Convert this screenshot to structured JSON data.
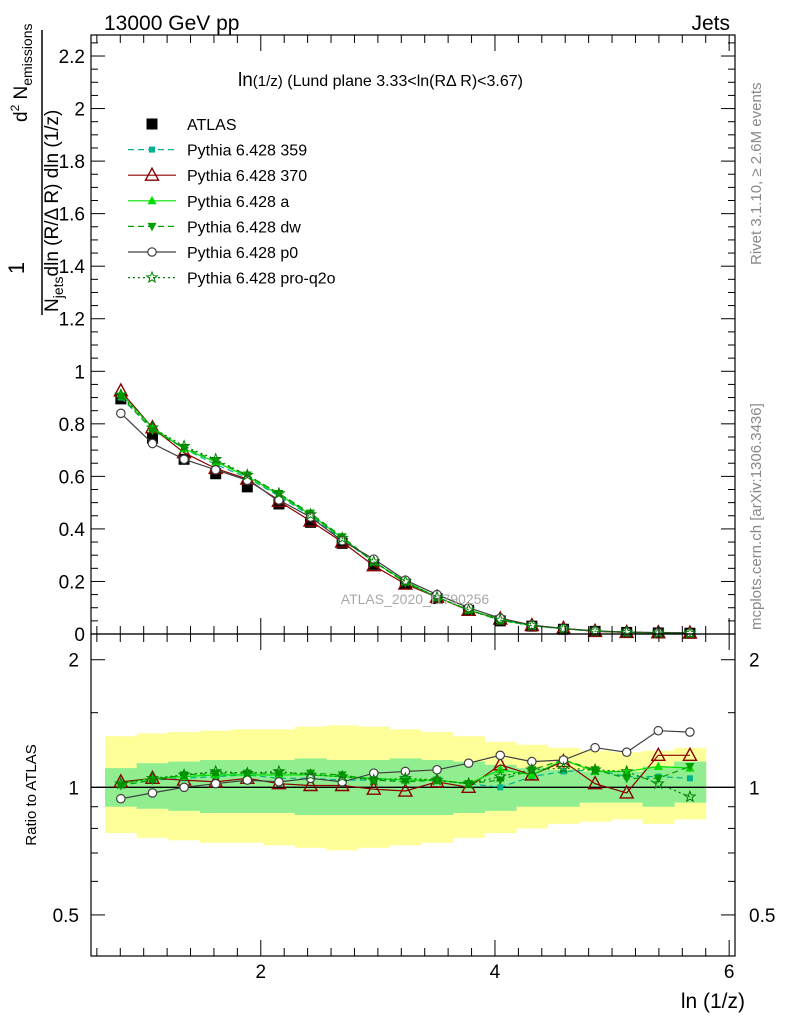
{
  "header": {
    "energy": "13000 GeV pp",
    "process": "Jets"
  },
  "side": {
    "rivet": "Rivet 3.1.10, ≥ 2.6M events",
    "mcplots": "mcplots.cern.ch [arXiv:1306.3436]"
  },
  "watermark": "ATLAS_2020_I1790256",
  "chart_data": [
    {
      "type": "scatter",
      "title": "ln(1/z) (Lund plane 3.33<ln(RΔ R)<3.67)",
      "xlabel": "ln (1/z)",
      "ylabel": "1/N_jets d²N_emissions/dln(R/ΔR) dln(1/z)",
      "xlim": [
        0.55,
        6.05
      ],
      "ylim": [
        0,
        2.28
      ],
      "yticks": [
        0,
        0.2,
        0.4,
        0.6,
        0.8,
        1,
        1.2,
        1.4,
        1.6,
        1.8,
        2,
        2.2
      ],
      "xticks": [
        2,
        4,
        6
      ],
      "x": [
        0.805,
        1.075,
        1.345,
        1.615,
        1.885,
        2.155,
        2.425,
        2.695,
        2.965,
        3.235,
        3.505,
        3.775,
        4.045,
        4.315,
        4.585,
        4.855,
        5.125,
        5.395,
        5.665
      ],
      "series": [
        {
          "name": "ATLAS",
          "color": "#000000",
          "marker": "square",
          "line": "none",
          "values": [
            0.895,
            0.745,
            0.665,
            0.61,
            0.56,
            0.495,
            0.425,
            0.345,
            0.265,
            0.19,
            0.135,
            0.09,
            0.05,
            0.03,
            0.018,
            0.01,
            0.006,
            0.004,
            0.003
          ]
        },
        {
          "name": "Pythia 6.428 359",
          "color": "#00b38f",
          "marker": "smallsquare",
          "line": "dashed",
          "values": [
            0.9,
            0.78,
            0.705,
            0.645,
            0.595,
            0.525,
            0.45,
            0.36,
            0.275,
            0.2,
            0.14,
            0.092,
            0.052,
            0.032,
            0.019,
            0.011,
            0.007,
            0.005,
            0.003
          ]
        },
        {
          "name": "Pythia 6.428 370",
          "color": "#8b0000",
          "marker": "opentriangle",
          "line": "solid",
          "values": [
            0.925,
            0.785,
            0.69,
            0.63,
            0.59,
            0.505,
            0.43,
            0.35,
            0.26,
            0.19,
            0.14,
            0.09,
            0.057,
            0.032,
            0.021,
            0.01,
            0.006,
            0.005,
            0.0035
          ]
        },
        {
          "name": "Pythia 6.428 a",
          "color": "#00e000",
          "marker": "triangle",
          "line": "solid",
          "values": [
            0.915,
            0.785,
            0.705,
            0.655,
            0.6,
            0.53,
            0.455,
            0.365,
            0.275,
            0.2,
            0.14,
            0.092,
            0.055,
            0.032,
            0.021,
            0.011,
            0.007,
            0.0045,
            0.0034
          ]
        },
        {
          "name": "Pythia 6.428 dw",
          "color": "#00a000",
          "marker": "invtriangle",
          "line": "dashed",
          "values": [
            0.905,
            0.775,
            0.71,
            0.66,
            0.605,
            0.535,
            0.46,
            0.37,
            0.275,
            0.195,
            0.14,
            0.092,
            0.052,
            0.033,
            0.021,
            0.011,
            0.0065,
            0.0045,
            0.0034
          ]
        },
        {
          "name": "Pythia 6.428 p0",
          "color": "#404040",
          "marker": "opencircle",
          "line": "solid",
          "values": [
            0.84,
            0.725,
            0.665,
            0.625,
            0.585,
            0.51,
            0.445,
            0.355,
            0.285,
            0.205,
            0.15,
            0.1,
            0.06,
            0.034,
            0.021,
            0.012,
            0.0073,
            0.0055,
            0.0042
          ]
        },
        {
          "name": "Pythia 6.428 pro-q2o",
          "color": "#008000",
          "marker": "star",
          "line": "dotted",
          "values": [
            0.91,
            0.785,
            0.715,
            0.665,
            0.605,
            0.535,
            0.455,
            0.365,
            0.275,
            0.2,
            0.14,
            0.092,
            0.053,
            0.032,
            0.02,
            0.011,
            0.0068,
            0.0042,
            0.0029
          ]
        }
      ]
    },
    {
      "type": "line",
      "ylabel": "Ratio to ATLAS",
      "xlim": [
        0.55,
        6.05
      ],
      "ylim": [
        0.4,
        2.3
      ],
      "log_y": true,
      "yticks": [
        0.5,
        1,
        2
      ],
      "xticks": [
        2,
        4,
        6
      ],
      "x": [
        0.805,
        1.075,
        1.345,
        1.615,
        1.885,
        2.155,
        2.425,
        2.695,
        2.965,
        3.235,
        3.505,
        3.775,
        4.045,
        4.315,
        4.585,
        4.855,
        5.125,
        5.395,
        5.665
      ],
      "band_inner": {
        "color": "#90ee90",
        "lo": [
          0.9,
          0.89,
          0.88,
          0.87,
          0.87,
          0.87,
          0.86,
          0.86,
          0.86,
          0.86,
          0.86,
          0.87,
          0.88,
          0.9,
          0.9,
          0.92,
          0.92,
          0.9,
          0.92
        ],
        "hi": [
          1.11,
          1.14,
          1.15,
          1.16,
          1.16,
          1.16,
          1.17,
          1.16,
          1.16,
          1.17,
          1.16,
          1.15,
          1.13,
          1.11,
          1.1,
          1.09,
          1.09,
          1.12,
          1.15
        ]
      },
      "band_outer": {
        "color": "#ffff99",
        "lo": [
          0.78,
          0.76,
          0.75,
          0.74,
          0.74,
          0.73,
          0.72,
          0.71,
          0.72,
          0.73,
          0.74,
          0.76,
          0.78,
          0.8,
          0.82,
          0.83,
          0.84,
          0.82,
          0.84
        ],
        "hi": [
          1.32,
          1.34,
          1.35,
          1.36,
          1.37,
          1.37,
          1.39,
          1.4,
          1.39,
          1.37,
          1.35,
          1.32,
          1.28,
          1.26,
          1.24,
          1.22,
          1.21,
          1.22,
          1.24
        ]
      },
      "series": [
        {
          "name": "Pythia 6.428 359",
          "color": "#00b38f",
          "marker": "smallsquare",
          "line": "dashed",
          "values": [
            1.01,
            1.04,
            1.05,
            1.06,
            1.07,
            1.05,
            1.05,
            1.04,
            1.04,
            1.04,
            1.04,
            1.02,
            1.0,
            1.06,
            1.09,
            1.1,
            1.06,
            1.06,
            1.05
          ]
        },
        {
          "name": "Pythia 6.428 370",
          "color": "#8b0000",
          "marker": "opentriangle",
          "line": "solid",
          "values": [
            1.03,
            1.05,
            1.04,
            1.03,
            1.05,
            1.02,
            1.01,
            1.01,
            0.99,
            0.98,
            1.03,
            1.0,
            1.13,
            1.07,
            1.15,
            1.02,
            0.97,
            1.19,
            1.19
          ]
        },
        {
          "name": "Pythia 6.428 a",
          "color": "#00e000",
          "marker": "triangle",
          "line": "solid",
          "values": [
            1.02,
            1.05,
            1.06,
            1.07,
            1.07,
            1.07,
            1.07,
            1.06,
            1.05,
            1.04,
            1.04,
            1.02,
            1.1,
            1.07,
            1.16,
            1.09,
            1.09,
            1.12,
            1.11
          ]
        },
        {
          "name": "Pythia 6.428 dw",
          "color": "#00a000",
          "marker": "invtriangle",
          "line": "dashed",
          "values": [
            1.01,
            1.04,
            1.07,
            1.08,
            1.08,
            1.08,
            1.08,
            1.07,
            1.04,
            1.03,
            1.04,
            1.02,
            1.04,
            1.1,
            1.16,
            1.1,
            1.05,
            1.05,
            1.12
          ]
        },
        {
          "name": "Pythia 6.428 p0",
          "color": "#404040",
          "marker": "opencircle",
          "line": "solid",
          "values": [
            0.94,
            0.97,
            1.0,
            1.02,
            1.04,
            1.03,
            1.05,
            1.03,
            1.08,
            1.09,
            1.1,
            1.14,
            1.19,
            1.15,
            1.16,
            1.24,
            1.21,
            1.36,
            1.35
          ]
        },
        {
          "name": "Pythia 6.428 pro-q2o",
          "color": "#008000",
          "marker": "star",
          "line": "dotted",
          "values": [
            1.02,
            1.05,
            1.07,
            1.09,
            1.08,
            1.09,
            1.07,
            1.06,
            1.04,
            1.05,
            1.04,
            1.02,
            1.06,
            1.1,
            1.11,
            1.1,
            1.09,
            1.02,
            0.95
          ]
        }
      ]
    }
  ]
}
